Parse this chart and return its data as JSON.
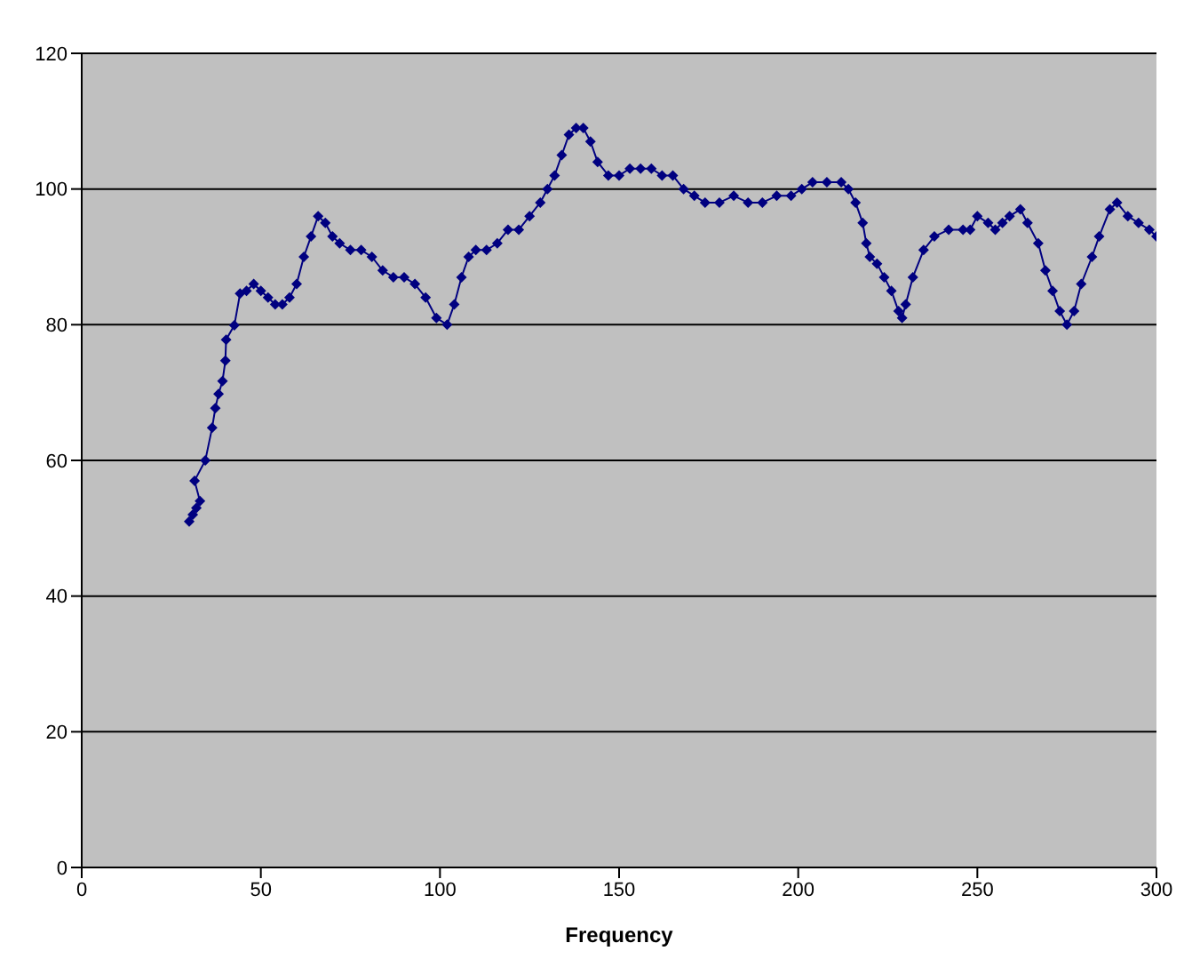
{
  "chart_data": {
    "type": "line",
    "xlabel": "Frequency",
    "xlim": [
      0,
      300
    ],
    "xticks": [
      0,
      50,
      100,
      150,
      200,
      250,
      300
    ],
    "ylim": [
      0,
      120
    ],
    "yticks": [
      0,
      20,
      40,
      60,
      80,
      100,
      120
    ],
    "grid": "y",
    "legend": false,
    "marker": "diamond",
    "line_style": "solid",
    "series": [
      {
        "color": "#000080",
        "x": [
          30,
          31,
          32,
          33,
          31.5,
          34.5,
          36.4,
          37.3,
          38.2,
          39.3,
          40.1,
          40.3,
          42.6,
          44.2,
          46,
          48,
          50,
          52,
          54,
          56,
          58,
          60,
          62,
          64,
          66,
          68,
          70,
          72,
          75,
          78,
          81,
          84,
          87,
          90,
          93,
          96,
          99,
          102,
          104,
          106,
          108,
          110,
          113,
          116,
          119,
          122,
          125,
          128,
          130,
          132,
          134,
          136,
          138,
          140,
          142,
          144,
          147,
          150,
          153,
          156,
          159,
          162,
          165,
          168,
          171,
          174,
          178,
          182,
          186,
          190,
          194,
          198,
          201,
          204,
          208,
          212,
          214,
          216,
          218,
          219,
          220,
          222,
          224,
          226,
          228,
          229,
          230,
          232,
          235,
          238,
          242,
          246,
          248,
          250,
          253,
          255,
          257,
          259,
          262,
          264,
          267,
          269,
          271,
          273,
          275,
          277,
          279,
          282,
          284,
          287,
          289,
          292,
          295,
          298,
          300
        ],
        "values": [
          51,
          52,
          53,
          54,
          57,
          60,
          64.8,
          67.7,
          69.8,
          71.7,
          74.7,
          77.8,
          79.9,
          84.6,
          85,
          86,
          85,
          84,
          83,
          83,
          84,
          86,
          90,
          93,
          96,
          95,
          93,
          92,
          91,
          91,
          90,
          88,
          87,
          87,
          86,
          84,
          81,
          80,
          83,
          87,
          90,
          91,
          91,
          92,
          94,
          94,
          96,
          98,
          100,
          102,
          105,
          108,
          109,
          109,
          107,
          104,
          102,
          102,
          103,
          103,
          103,
          102,
          102,
          100,
          99,
          98,
          98,
          99,
          98,
          98,
          99,
          99,
          100,
          101,
          101,
          101,
          100,
          98,
          95,
          92,
          90,
          89,
          87,
          85,
          82,
          81,
          83,
          87,
          91,
          93,
          94,
          94,
          94,
          96,
          95,
          94,
          95,
          96,
          97,
          95,
          92,
          88,
          85,
          82,
          80,
          82,
          86,
          90,
          93,
          97,
          98,
          96,
          95,
          94,
          93
        ]
      }
    ]
  }
}
